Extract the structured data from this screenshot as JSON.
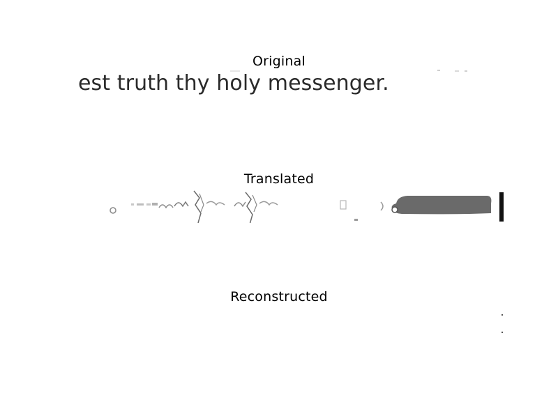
{
  "panels": [
    {
      "title": "Original",
      "image_text": "est truth thy holy messenger."
    },
    {
      "title": "Translated"
    },
    {
      "title": "Reconstructed"
    }
  ],
  "colors": {
    "background": "#ffffff",
    "text": "#000000",
    "image_text": "#2a2a2a",
    "blob_gray": "#6a6a6a",
    "artifact_gray": "#9a9a9a"
  }
}
